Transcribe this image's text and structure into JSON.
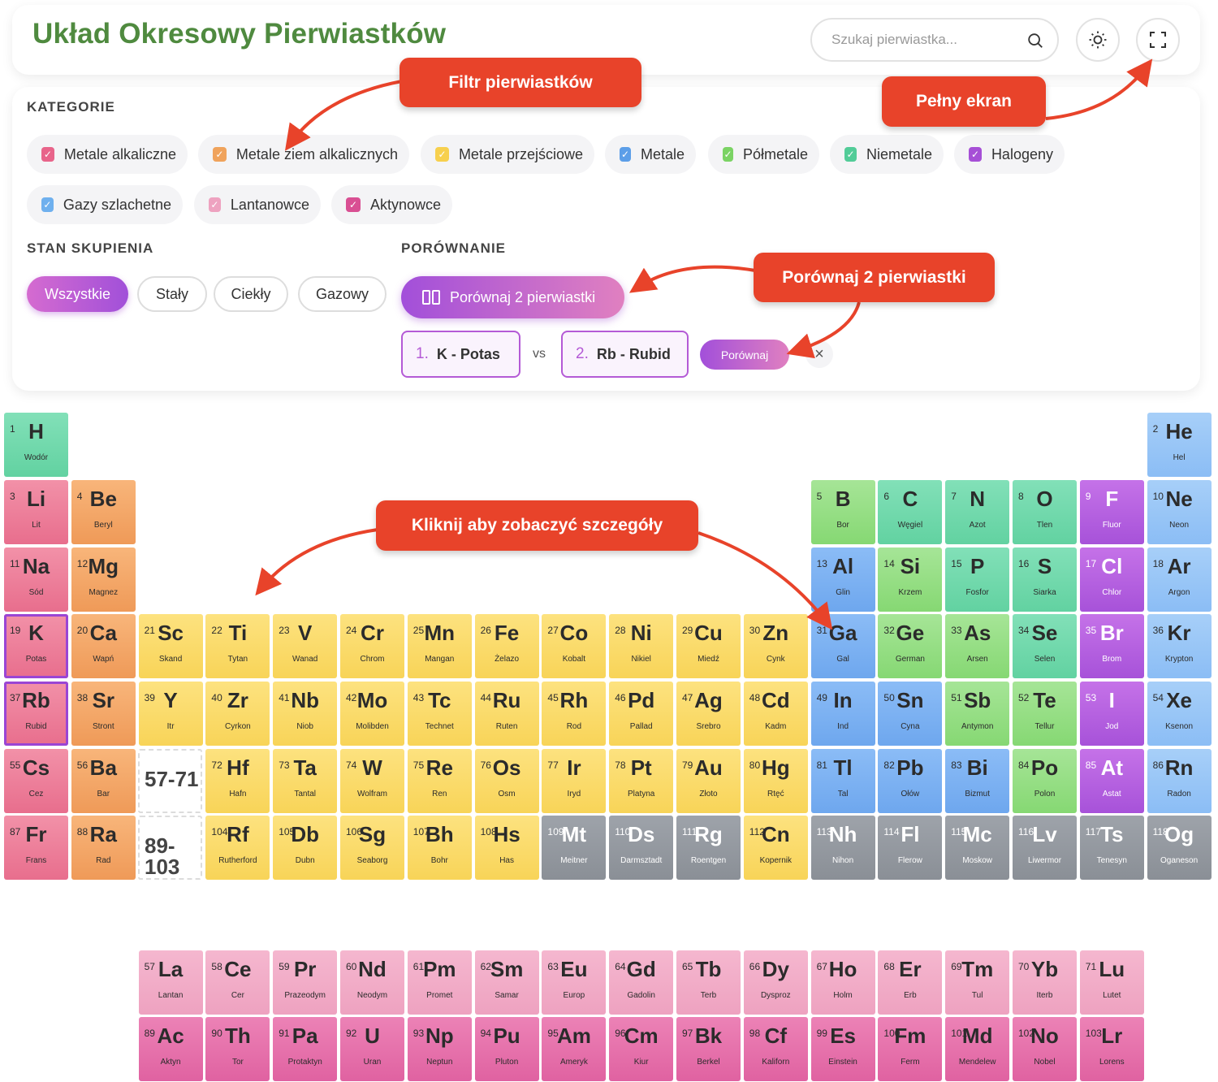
{
  "header": {
    "title": "Układ Okresowy Pierwiastków",
    "search_placeholder": "Szukaj pierwiastka..."
  },
  "categories": {
    "title": "KATEGORIE",
    "items": [
      {
        "label": "Metale alkaliczne",
        "color": "#e8648a"
      },
      {
        "label": "Metale ziem alkalicznych",
        "color": "#f0a35c"
      },
      {
        "label": "Metale przejściowe",
        "color": "#f7d04e"
      },
      {
        "label": "Metale",
        "color": "#5c9ee8"
      },
      {
        "label": "Półmetale",
        "color": "#7bd364"
      },
      {
        "label": "Niemetale",
        "color": "#52cc98"
      },
      {
        "label": "Halogeny",
        "color": "#a64fd6"
      },
      {
        "label": "Gazy szlachetne",
        "color": "#6fb0ee"
      },
      {
        "label": "Lantanowce",
        "color": "#eea2c0"
      },
      {
        "label": "Aktynowce",
        "color": "#d94f93"
      }
    ]
  },
  "state": {
    "title": "STAN SKUPIENIA",
    "options": [
      "Wszystkie",
      "Stały",
      "Ciekły",
      "Gazowy"
    ],
    "active": "Wszystkie"
  },
  "compare": {
    "title": "PORÓWNANIE",
    "button_label": "Porównaj 2 pierwiastki",
    "first_num": "1.",
    "first_label": "K - Potas",
    "vs": "vs",
    "second_num": "2.",
    "second_label": "Rb - Rubid",
    "go_label": "Porównaj",
    "close": "×"
  },
  "callouts": {
    "filter": "Filtr pierwiastków",
    "fullscreen": "Pełny ekran",
    "compare": "Porównaj 2 pierwiastki",
    "click": "Kliknij aby zobaczyć szczegóły"
  },
  "placeholders": {
    "lanthanides": "57-71",
    "actinides": "89-103"
  },
  "elements": [
    {
      "n": 1,
      "s": "H",
      "name": "Wodór",
      "c": "non",
      "r": 1,
      "col": 1
    },
    {
      "n": 2,
      "s": "He",
      "name": "Hel",
      "c": "nob",
      "r": 1,
      "col": 18
    },
    {
      "n": 3,
      "s": "Li",
      "name": "Lit",
      "c": "alk",
      "r": 2,
      "col": 1
    },
    {
      "n": 4,
      "s": "Be",
      "name": "Beryl",
      "c": "eal",
      "r": 2,
      "col": 2
    },
    {
      "n": 5,
      "s": "B",
      "name": "Bor",
      "c": "semi",
      "r": 2,
      "col": 13
    },
    {
      "n": 6,
      "s": "C",
      "name": "Węgiel",
      "c": "non",
      "r": 2,
      "col": 14
    },
    {
      "n": 7,
      "s": "N",
      "name": "Azot",
      "c": "non",
      "r": 2,
      "col": 15
    },
    {
      "n": 8,
      "s": "O",
      "name": "Tlen",
      "c": "non",
      "r": 2,
      "col": 16
    },
    {
      "n": 9,
      "s": "F",
      "name": "Fluor",
      "c": "hal",
      "r": 2,
      "col": 17
    },
    {
      "n": 10,
      "s": "Ne",
      "name": "Neon",
      "c": "nob",
      "r": 2,
      "col": 18
    },
    {
      "n": 11,
      "s": "Na",
      "name": "Sód",
      "c": "alk",
      "r": 3,
      "col": 1
    },
    {
      "n": 12,
      "s": "Mg",
      "name": "Magnez",
      "c": "eal",
      "r": 3,
      "col": 2
    },
    {
      "n": 13,
      "s": "Al",
      "name": "Glin",
      "c": "met",
      "r": 3,
      "col": 13
    },
    {
      "n": 14,
      "s": "Si",
      "name": "Krzem",
      "c": "semi",
      "r": 3,
      "col": 14
    },
    {
      "n": 15,
      "s": "P",
      "name": "Fosfor",
      "c": "non",
      "r": 3,
      "col": 15
    },
    {
      "n": 16,
      "s": "S",
      "name": "Siarka",
      "c": "non",
      "r": 3,
      "col": 16
    },
    {
      "n": 17,
      "s": "Cl",
      "name": "Chlor",
      "c": "hal",
      "r": 3,
      "col": 17
    },
    {
      "n": 18,
      "s": "Ar",
      "name": "Argon",
      "c": "nob",
      "r": 3,
      "col": 18
    },
    {
      "n": 19,
      "s": "K",
      "name": "Potas",
      "c": "alk",
      "r": 4,
      "col": 1,
      "sel": true
    },
    {
      "n": 20,
      "s": "Ca",
      "name": "Wapń",
      "c": "eal",
      "r": 4,
      "col": 2
    },
    {
      "n": 21,
      "s": "Sc",
      "name": "Skand",
      "c": "tr",
      "r": 4,
      "col": 3
    },
    {
      "n": 22,
      "s": "Ti",
      "name": "Tytan",
      "c": "tr",
      "r": 4,
      "col": 4
    },
    {
      "n": 23,
      "s": "V",
      "name": "Wanad",
      "c": "tr",
      "r": 4,
      "col": 5
    },
    {
      "n": 24,
      "s": "Cr",
      "name": "Chrom",
      "c": "tr",
      "r": 4,
      "col": 6
    },
    {
      "n": 25,
      "s": "Mn",
      "name": "Mangan",
      "c": "tr",
      "r": 4,
      "col": 7
    },
    {
      "n": 26,
      "s": "Fe",
      "name": "Żelazo",
      "c": "tr",
      "r": 4,
      "col": 8
    },
    {
      "n": 27,
      "s": "Co",
      "name": "Kobalt",
      "c": "tr",
      "r": 4,
      "col": 9
    },
    {
      "n": 28,
      "s": "Ni",
      "name": "Nikiel",
      "c": "tr",
      "r": 4,
      "col": 10
    },
    {
      "n": 29,
      "s": "Cu",
      "name": "Miedź",
      "c": "tr",
      "r": 4,
      "col": 11
    },
    {
      "n": 30,
      "s": "Zn",
      "name": "Cynk",
      "c": "tr",
      "r": 4,
      "col": 12
    },
    {
      "n": 31,
      "s": "Ga",
      "name": "Gal",
      "c": "met",
      "r": 4,
      "col": 13
    },
    {
      "n": 32,
      "s": "Ge",
      "name": "German",
      "c": "semi",
      "r": 4,
      "col": 14
    },
    {
      "n": 33,
      "s": "As",
      "name": "Arsen",
      "c": "semi",
      "r": 4,
      "col": 15
    },
    {
      "n": 34,
      "s": "Se",
      "name": "Selen",
      "c": "non",
      "r": 4,
      "col": 16
    },
    {
      "n": 35,
      "s": "Br",
      "name": "Brom",
      "c": "hal",
      "r": 4,
      "col": 17
    },
    {
      "n": 36,
      "s": "Kr",
      "name": "Krypton",
      "c": "nob",
      "r": 4,
      "col": 18
    },
    {
      "n": 37,
      "s": "Rb",
      "name": "Rubid",
      "c": "alk",
      "r": 5,
      "col": 1,
      "sel": true
    },
    {
      "n": 38,
      "s": "Sr",
      "name": "Stront",
      "c": "eal",
      "r": 5,
      "col": 2
    },
    {
      "n": 39,
      "s": "Y",
      "name": "Itr",
      "c": "tr",
      "r": 5,
      "col": 3
    },
    {
      "n": 40,
      "s": "Zr",
      "name": "Cyrkon",
      "c": "tr",
      "r": 5,
      "col": 4
    },
    {
      "n": 41,
      "s": "Nb",
      "name": "Niob",
      "c": "tr",
      "r": 5,
      "col": 5
    },
    {
      "n": 42,
      "s": "Mo",
      "name": "Molibden",
      "c": "tr",
      "r": 5,
      "col": 6
    },
    {
      "n": 43,
      "s": "Tc",
      "name": "Technet",
      "c": "tr",
      "r": 5,
      "col": 7
    },
    {
      "n": 44,
      "s": "Ru",
      "name": "Ruten",
      "c": "tr",
      "r": 5,
      "col": 8
    },
    {
      "n": 45,
      "s": "Rh",
      "name": "Rod",
      "c": "tr",
      "r": 5,
      "col": 9
    },
    {
      "n": 46,
      "s": "Pd",
      "name": "Pallad",
      "c": "tr",
      "r": 5,
      "col": 10
    },
    {
      "n": 47,
      "s": "Ag",
      "name": "Srebro",
      "c": "tr",
      "r": 5,
      "col": 11
    },
    {
      "n": 48,
      "s": "Cd",
      "name": "Kadm",
      "c": "tr",
      "r": 5,
      "col": 12
    },
    {
      "n": 49,
      "s": "In",
      "name": "Ind",
      "c": "met",
      "r": 5,
      "col": 13
    },
    {
      "n": 50,
      "s": "Sn",
      "name": "Cyna",
      "c": "met",
      "r": 5,
      "col": 14
    },
    {
      "n": 51,
      "s": "Sb",
      "name": "Antymon",
      "c": "semi",
      "r": 5,
      "col": 15
    },
    {
      "n": 52,
      "s": "Te",
      "name": "Tellur",
      "c": "semi",
      "r": 5,
      "col": 16
    },
    {
      "n": 53,
      "s": "I",
      "name": "Jod",
      "c": "hal",
      "r": 5,
      "col": 17
    },
    {
      "n": 54,
      "s": "Xe",
      "name": "Ksenon",
      "c": "nob",
      "r": 5,
      "col": 18
    },
    {
      "n": 55,
      "s": "Cs",
      "name": "Cez",
      "c": "alk",
      "r": 6,
      "col": 1
    },
    {
      "n": 56,
      "s": "Ba",
      "name": "Bar",
      "c": "eal",
      "r": 6,
      "col": 2
    },
    {
      "n": 72,
      "s": "Hf",
      "name": "Hafn",
      "c": "tr",
      "r": 6,
      "col": 4
    },
    {
      "n": 73,
      "s": "Ta",
      "name": "Tantal",
      "c": "tr",
      "r": 6,
      "col": 5
    },
    {
      "n": 74,
      "s": "W",
      "name": "Wolfram",
      "c": "tr",
      "r": 6,
      "col": 6
    },
    {
      "n": 75,
      "s": "Re",
      "name": "Ren",
      "c": "tr",
      "r": 6,
      "col": 7
    },
    {
      "n": 76,
      "s": "Os",
      "name": "Osm",
      "c": "tr",
      "r": 6,
      "col": 8
    },
    {
      "n": 77,
      "s": "Ir",
      "name": "Iryd",
      "c": "tr",
      "r": 6,
      "col": 9
    },
    {
      "n": 78,
      "s": "Pt",
      "name": "Platyna",
      "c": "tr",
      "r": 6,
      "col": 10
    },
    {
      "n": 79,
      "s": "Au",
      "name": "Złoto",
      "c": "tr",
      "r": 6,
      "col": 11
    },
    {
      "n": 80,
      "s": "Hg",
      "name": "Rtęć",
      "c": "tr",
      "r": 6,
      "col": 12
    },
    {
      "n": 81,
      "s": "Tl",
      "name": "Tal",
      "c": "met",
      "r": 6,
      "col": 13
    },
    {
      "n": 82,
      "s": "Pb",
      "name": "Ołów",
      "c": "met",
      "r": 6,
      "col": 14
    },
    {
      "n": 83,
      "s": "Bi",
      "name": "Bizmut",
      "c": "met",
      "r": 6,
      "col": 15
    },
    {
      "n": 84,
      "s": "Po",
      "name": "Polon",
      "c": "semi",
      "r": 6,
      "col": 16
    },
    {
      "n": 85,
      "s": "At",
      "name": "Astat",
      "c": "hal",
      "r": 6,
      "col": 17
    },
    {
      "n": 86,
      "s": "Rn",
      "name": "Radon",
      "c": "nob",
      "r": 6,
      "col": 18
    },
    {
      "n": 87,
      "s": "Fr",
      "name": "Frans",
      "c": "alk",
      "r": 7,
      "col": 1
    },
    {
      "n": 88,
      "s": "Ra",
      "name": "Rad",
      "c": "eal",
      "r": 7,
      "col": 2
    },
    {
      "n": 104,
      "s": "Rf",
      "name": "Rutherford",
      "c": "tr",
      "r": 7,
      "col": 4
    },
    {
      "n": 105,
      "s": "Db",
      "name": "Dubn",
      "c": "tr",
      "r": 7,
      "col": 5
    },
    {
      "n": 106,
      "s": "Sg",
      "name": "Seaborg",
      "c": "tr",
      "r": 7,
      "col": 6
    },
    {
      "n": 107,
      "s": "Bh",
      "name": "Bohr",
      "c": "tr",
      "r": 7,
      "col": 7
    },
    {
      "n": 108,
      "s": "Hs",
      "name": "Has",
      "c": "tr",
      "r": 7,
      "col": 8
    },
    {
      "n": 109,
      "s": "Mt",
      "name": "Meitner",
      "c": "unk",
      "r": 7,
      "col": 9
    },
    {
      "n": 110,
      "s": "Ds",
      "name": "Darmsztadt",
      "c": "unk",
      "r": 7,
      "col": 10
    },
    {
      "n": 111,
      "s": "Rg",
      "name": "Roentgen",
      "c": "unk",
      "r": 7,
      "col": 11
    },
    {
      "n": 112,
      "s": "Cn",
      "name": "Kopernik",
      "c": "tr",
      "r": 7,
      "col": 12
    },
    {
      "n": 113,
      "s": "Nh",
      "name": "Nihon",
      "c": "unk",
      "r": 7,
      "col": 13
    },
    {
      "n": 114,
      "s": "Fl",
      "name": "Flerow",
      "c": "unk",
      "r": 7,
      "col": 14
    },
    {
      "n": 115,
      "s": "Mc",
      "name": "Moskow",
      "c": "unk",
      "r": 7,
      "col": 15
    },
    {
      "n": 116,
      "s": "Lv",
      "name": "Liwermor",
      "c": "unk",
      "r": 7,
      "col": 16
    },
    {
      "n": 117,
      "s": "Ts",
      "name": "Tenesyn",
      "c": "unk",
      "r": 7,
      "col": 17
    },
    {
      "n": 118,
      "s": "Og",
      "name": "Oganeson",
      "c": "unk",
      "r": 7,
      "col": 18
    },
    {
      "n": 57,
      "s": "La",
      "name": "Lantan",
      "c": "lan",
      "r": 9,
      "col": 3
    },
    {
      "n": 58,
      "s": "Ce",
      "name": "Cer",
      "c": "lan",
      "r": 9,
      "col": 4
    },
    {
      "n": 59,
      "s": "Pr",
      "name": "Prazeodym",
      "c": "lan",
      "r": 9,
      "col": 5
    },
    {
      "n": 60,
      "s": "Nd",
      "name": "Neodym",
      "c": "lan",
      "r": 9,
      "col": 6
    },
    {
      "n": 61,
      "s": "Pm",
      "name": "Promet",
      "c": "lan",
      "r": 9,
      "col": 7
    },
    {
      "n": 62,
      "s": "Sm",
      "name": "Samar",
      "c": "lan",
      "r": 9,
      "col": 8
    },
    {
      "n": 63,
      "s": "Eu",
      "name": "Europ",
      "c": "lan",
      "r": 9,
      "col": 9
    },
    {
      "n": 64,
      "s": "Gd",
      "name": "Gadolin",
      "c": "lan",
      "r": 9,
      "col": 10
    },
    {
      "n": 65,
      "s": "Tb",
      "name": "Terb",
      "c": "lan",
      "r": 9,
      "col": 11
    },
    {
      "n": 66,
      "s": "Dy",
      "name": "Dysproz",
      "c": "lan",
      "r": 9,
      "col": 12
    },
    {
      "n": 67,
      "s": "Ho",
      "name": "Holm",
      "c": "lan",
      "r": 9,
      "col": 13
    },
    {
      "n": 68,
      "s": "Er",
      "name": "Erb",
      "c": "lan",
      "r": 9,
      "col": 14
    },
    {
      "n": 69,
      "s": "Tm",
      "name": "Tul",
      "c": "lan",
      "r": 9,
      "col": 15
    },
    {
      "n": 70,
      "s": "Yb",
      "name": "Iterb",
      "c": "lan",
      "r": 9,
      "col": 16
    },
    {
      "n": 71,
      "s": "Lu",
      "name": "Lutet",
      "c": "lan",
      "r": 9,
      "col": 17
    },
    {
      "n": 89,
      "s": "Ac",
      "name": "Aktyn",
      "c": "act",
      "r": 10,
      "col": 3
    },
    {
      "n": 90,
      "s": "Th",
      "name": "Tor",
      "c": "act",
      "r": 10,
      "col": 4
    },
    {
      "n": 91,
      "s": "Pa",
      "name": "Protaktyn",
      "c": "act",
      "r": 10,
      "col": 5
    },
    {
      "n": 92,
      "s": "U",
      "name": "Uran",
      "c": "act",
      "r": 10,
      "col": 6
    },
    {
      "n": 93,
      "s": "Np",
      "name": "Neptun",
      "c": "act",
      "r": 10,
      "col": 7
    },
    {
      "n": 94,
      "s": "Pu",
      "name": "Pluton",
      "c": "act",
      "r": 10,
      "col": 8
    },
    {
      "n": 95,
      "s": "Am",
      "name": "Ameryk",
      "c": "act",
      "r": 10,
      "col": 9
    },
    {
      "n": 96,
      "s": "Cm",
      "name": "Kiur",
      "c": "act",
      "r": 10,
      "col": 10
    },
    {
      "n": 97,
      "s": "Bk",
      "name": "Berkel",
      "c": "act",
      "r": 10,
      "col": 11
    },
    {
      "n": 98,
      "s": "Cf",
      "name": "Kaliforn",
      "c": "act",
      "r": 10,
      "col": 12
    },
    {
      "n": 99,
      "s": "Es",
      "name": "Einstein",
      "c": "act",
      "r": 10,
      "col": 13
    },
    {
      "n": 100,
      "s": "Fm",
      "name": "Ferm",
      "c": "act",
      "r": 10,
      "col": 14
    },
    {
      "n": 101,
      "s": "Md",
      "name": "Mendelew",
      "c": "act",
      "r": 10,
      "col": 15
    },
    {
      "n": 102,
      "s": "No",
      "name": "Nobel",
      "c": "act",
      "r": 10,
      "col": 16
    },
    {
      "n": 103,
      "s": "Lr",
      "name": "Lorens",
      "c": "act",
      "r": 10,
      "col": 17
    }
  ]
}
